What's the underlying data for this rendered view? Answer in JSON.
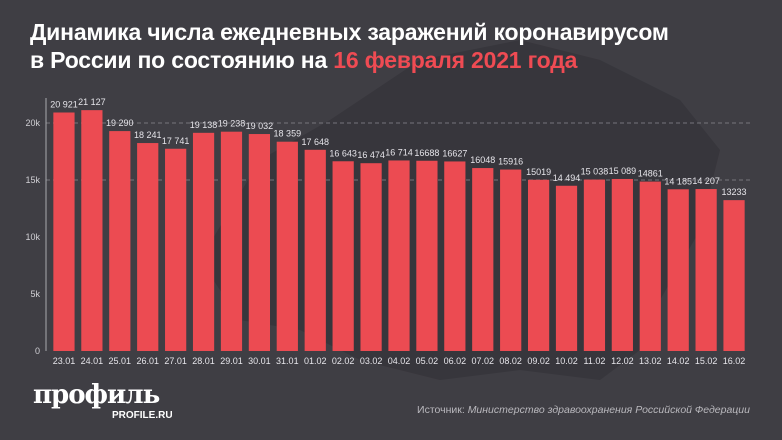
{
  "title": {
    "line1": "Динамика числа ежедневных заражений коронавирусом",
    "line2_prefix": "в России по состоянию на ",
    "line2_accent": "16 февраля 2021 года"
  },
  "colors": {
    "background": "#3f3e44",
    "bar": "#ec4b52",
    "accent": "#ef4b53",
    "text": "#ffffff"
  },
  "chart_data": {
    "type": "bar",
    "categories": [
      "23.01",
      "24.01",
      "25.01",
      "26.01",
      "27.01",
      "28.01",
      "29.01",
      "30.01",
      "31.01",
      "01.02",
      "02.02",
      "03.02",
      "04.02",
      "05.02",
      "06.02",
      "07.02",
      "08.02",
      "09.02",
      "10.02",
      "11.02",
      "12.02",
      "13.02",
      "14.02",
      "15.02",
      "16.02"
    ],
    "values": [
      20921,
      21127,
      19290,
      18241,
      17741,
      19138,
      19238,
      19032,
      18359,
      17648,
      16643,
      16474,
      16714,
      16688,
      16627,
      16048,
      15916,
      15019,
      14494,
      15038,
      15089,
      14861,
      14185,
      14207,
      13233
    ],
    "data_labels": [
      "20 921",
      "21 127",
      "19 290",
      "18 241",
      "17 741",
      "19 138",
      "19 238",
      "19 032",
      "18 359",
      "17 648",
      "16 643",
      "16 474",
      "16 714",
      "16688",
      "16627",
      "16048",
      "15916",
      "15019",
      "14 494",
      "15 038",
      "15 089",
      "14861",
      "14 185",
      "14 207",
      "13233"
    ],
    "yticks": [
      0,
      5000,
      10000,
      15000,
      20000
    ],
    "ytick_labels": [
      "0",
      "5k",
      "10k",
      "15k",
      "20k"
    ],
    "ylim": [
      0,
      20000
    ],
    "grid": "dashed horizontal at 15k and 20k"
  },
  "logo": {
    "name": "профиль",
    "sub": "PROFILE.RU"
  },
  "source": {
    "label": "Источник: ",
    "text": "Министерство здравоохранения Российской Федерации"
  }
}
